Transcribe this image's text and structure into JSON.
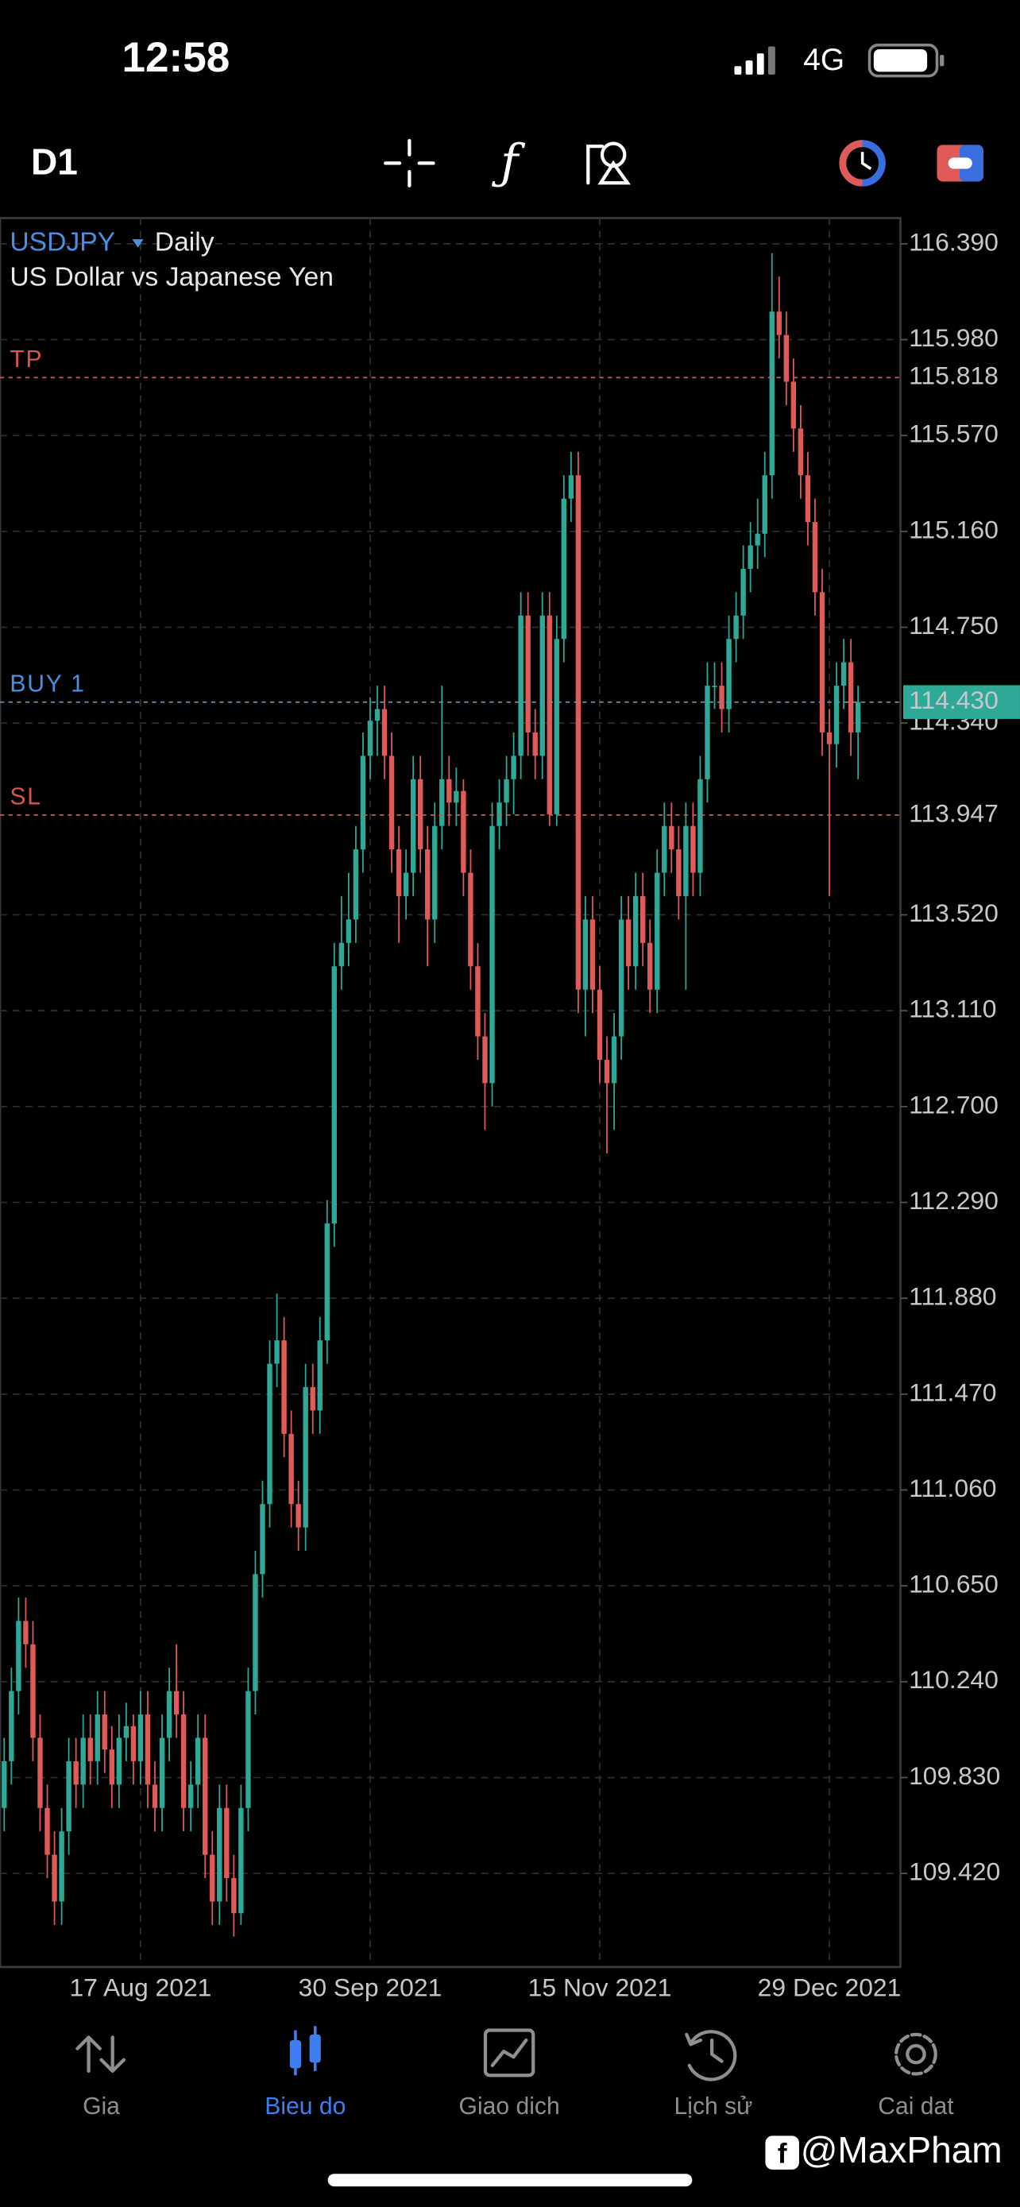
{
  "status_bar": {
    "time": "12:58",
    "network": "4G"
  },
  "toolbar": {
    "timeframe": "D1"
  },
  "chart_data": {
    "type": "candlestick",
    "symbol": "USDJPY",
    "timeframe": "Daily",
    "subtitle": "US Dollar vs Japanese Yen",
    "up_color": "#2ea897",
    "down_color": "#e05a58",
    "open": [
      109.7,
      109.9,
      110.2,
      110.5,
      110.4,
      110.0,
      109.7,
      109.5,
      109.3,
      109.6,
      109.9,
      109.8,
      110.0,
      109.9,
      110.1,
      109.95,
      109.8,
      110.0,
      110.05,
      109.9,
      110.1,
      109.8,
      109.7,
      110.0,
      110.2,
      110.1,
      109.7,
      109.8,
      110.0,
      109.5,
      109.3,
      109.7,
      109.4,
      109.25,
      109.7,
      110.2,
      110.7,
      111.0,
      111.6,
      111.7,
      111.3,
      111.0,
      110.9,
      111.5,
      111.4,
      111.7,
      112.2,
      113.3,
      113.4,
      113.5,
      113.8,
      114.2,
      114.35,
      114.4,
      114.2,
      113.8,
      113.6,
      113.7,
      114.1,
      113.8,
      113.5,
      113.9,
      114.1,
      114.0,
      114.05,
      113.7,
      113.3,
      113.0,
      112.8,
      113.9,
      114.0,
      114.1,
      114.2,
      114.8,
      114.3,
      114.2,
      114.8,
      113.95,
      114.7,
      115.3,
      115.4,
      113.2,
      113.5,
      113.2,
      112.9,
      112.8,
      113.0,
      113.5,
      113.3,
      113.6,
      113.4,
      113.2,
      113.7,
      113.9,
      113.8,
      113.6,
      113.9,
      113.7,
      114.1,
      114.5,
      114.5,
      114.4,
      114.7,
      114.8,
      115.0,
      115.1,
      115.15,
      115.4,
      116.1,
      116.0,
      115.8,
      115.6,
      115.4,
      115.2,
      114.9,
      114.3,
      114.25,
      114.5,
      114.6,
      114.3
    ],
    "high": [
      110.0,
      110.3,
      110.6,
      110.6,
      110.5,
      110.1,
      109.8,
      109.6,
      109.7,
      110.0,
      110.0,
      110.1,
      110.1,
      110.2,
      110.2,
      110.05,
      110.1,
      110.15,
      110.1,
      110.2,
      110.2,
      109.9,
      110.1,
      110.3,
      110.4,
      110.2,
      109.9,
      110.1,
      110.1,
      109.6,
      109.8,
      109.8,
      109.5,
      109.8,
      110.3,
      110.8,
      111.1,
      111.7,
      111.9,
      111.8,
      111.4,
      111.1,
      111.6,
      111.6,
      111.8,
      112.3,
      113.4,
      113.6,
      113.7,
      113.9,
      114.3,
      114.45,
      114.5,
      114.5,
      114.3,
      113.9,
      113.8,
      114.2,
      114.2,
      113.9,
      114.0,
      114.5,
      114.2,
      114.15,
      114.1,
      113.8,
      113.4,
      113.1,
      114.0,
      114.1,
      114.2,
      114.3,
      114.9,
      114.9,
      114.4,
      114.9,
      114.9,
      114.8,
      115.4,
      115.5,
      115.5,
      113.6,
      113.6,
      113.3,
      113.0,
      113.1,
      113.6,
      113.6,
      113.7,
      113.7,
      113.5,
      113.8,
      114.0,
      114.0,
      113.9,
      114.0,
      114.0,
      114.2,
      114.6,
      114.6,
      114.6,
      114.8,
      114.9,
      115.1,
      115.2,
      115.3,
      115.5,
      116.35,
      116.25,
      116.1,
      115.9,
      115.7,
      115.5,
      115.3,
      115.0,
      114.4,
      114.6,
      114.7,
      114.7,
      114.5
    ],
    "low": [
      109.6,
      109.8,
      110.1,
      110.3,
      109.9,
      109.6,
      109.4,
      109.2,
      109.2,
      109.5,
      109.7,
      109.7,
      109.8,
      109.8,
      109.85,
      109.7,
      109.7,
      109.9,
      109.8,
      109.8,
      109.7,
      109.6,
      109.6,
      109.9,
      110.0,
      109.6,
      109.6,
      109.7,
      109.4,
      109.2,
      109.2,
      109.3,
      109.15,
      109.2,
      109.6,
      110.1,
      110.6,
      110.9,
      111.5,
      111.2,
      110.9,
      110.8,
      110.8,
      111.3,
      111.3,
      111.6,
      112.1,
      113.2,
      113.3,
      113.4,
      113.7,
      114.1,
      114.2,
      114.1,
      113.7,
      113.4,
      113.5,
      113.6,
      113.7,
      113.3,
      113.4,
      113.8,
      113.9,
      113.9,
      113.6,
      113.2,
      112.9,
      112.6,
      112.7,
      113.8,
      113.9,
      113.95,
      114.1,
      114.2,
      114.1,
      114.1,
      113.9,
      113.9,
      114.6,
      115.2,
      113.1,
      113.0,
      113.1,
      112.8,
      112.5,
      112.6,
      112.9,
      113.2,
      113.2,
      113.3,
      113.1,
      113.1,
      113.6,
      113.7,
      113.5,
      113.2,
      113.6,
      113.6,
      114.0,
      114.4,
      114.3,
      114.3,
      114.6,
      114.7,
      114.9,
      115.0,
      115.05,
      115.3,
      115.9,
      115.7,
      115.5,
      115.3,
      115.1,
      114.8,
      114.2,
      113.6,
      114.15,
      114.4,
      114.2,
      114.1
    ],
    "close": [
      109.9,
      110.2,
      110.5,
      110.4,
      110.0,
      109.7,
      109.5,
      109.3,
      109.6,
      109.9,
      109.8,
      110.0,
      109.9,
      110.1,
      109.95,
      109.8,
      110.0,
      110.05,
      109.9,
      110.1,
      109.8,
      109.7,
      110.0,
      110.2,
      110.1,
      109.7,
      109.8,
      110.0,
      109.5,
      109.3,
      109.7,
      109.4,
      109.25,
      109.7,
      110.2,
      110.7,
      111.0,
      111.6,
      111.7,
      111.3,
      111.0,
      110.9,
      111.5,
      111.4,
      111.7,
      112.2,
      113.3,
      113.4,
      113.5,
      113.8,
      114.2,
      114.35,
      114.4,
      114.2,
      113.8,
      113.6,
      113.7,
      114.1,
      113.8,
      113.5,
      113.9,
      114.1,
      114.0,
      114.05,
      113.7,
      113.3,
      113.0,
      112.8,
      113.9,
      114.0,
      114.1,
      114.2,
      114.8,
      114.3,
      114.2,
      114.8,
      113.95,
      114.7,
      115.3,
      115.4,
      113.2,
      113.5,
      113.2,
      112.9,
      112.8,
      113.0,
      113.5,
      113.3,
      113.6,
      113.4,
      113.2,
      113.7,
      113.9,
      113.8,
      113.6,
      113.9,
      113.7,
      114.1,
      114.5,
      114.5,
      114.4,
      114.7,
      114.8,
      115.0,
      115.1,
      115.15,
      115.4,
      116.1,
      116.0,
      115.8,
      115.6,
      115.4,
      115.2,
      114.9,
      114.3,
      114.25,
      114.5,
      114.6,
      114.3,
      114.43
    ],
    "ylim": [
      109.02,
      116.5
    ],
    "yticks": [
      {
        "value": 116.39,
        "label": "116.390"
      },
      {
        "value": 115.98,
        "label": "115.980"
      },
      {
        "value": 115.57,
        "label": "115.570"
      },
      {
        "value": 115.16,
        "label": "115.160"
      },
      {
        "value": 114.75,
        "label": "114.750"
      },
      {
        "value": 114.34,
        "label": "114.340"
      },
      {
        "value": 113.52,
        "label": "113.520"
      },
      {
        "value": 113.11,
        "label": "113.110"
      },
      {
        "value": 112.7,
        "label": "112.700"
      },
      {
        "value": 112.29,
        "label": "112.290"
      },
      {
        "value": 111.88,
        "label": "111.880"
      },
      {
        "value": 111.47,
        "label": "111.470"
      },
      {
        "value": 111.06,
        "label": "111.060"
      },
      {
        "value": 110.65,
        "label": "110.650"
      },
      {
        "value": 110.24,
        "label": "110.240"
      },
      {
        "value": 109.83,
        "label": "109.830"
      },
      {
        "value": 109.42,
        "label": "109.420"
      }
    ],
    "xticks": [
      {
        "value": 19,
        "label": "17 Aug 2021"
      },
      {
        "value": 51,
        "label": "30 Sep 2021"
      },
      {
        "value": 83,
        "label": "15 Nov 2021"
      },
      {
        "value": 115,
        "label": "29 Dec 2021"
      }
    ],
    "grid": true,
    "levels": [
      {
        "name": "TP",
        "value": 115.818,
        "value_label": "115.818",
        "color": "#d9534f"
      },
      {
        "name": "BUY 1",
        "value": 114.43,
        "value_label": "114.430",
        "color": "#4a8fe0"
      },
      {
        "name": "SL",
        "value": 113.947,
        "value_label": "113.947",
        "color": "#d9534f"
      }
    ]
  },
  "nav": {
    "items": [
      "Gia",
      "Bieu do",
      "Giao dich",
      "Lịch sử",
      "Cai dat"
    ],
    "active": 1
  },
  "watermark": "@MaxPham"
}
